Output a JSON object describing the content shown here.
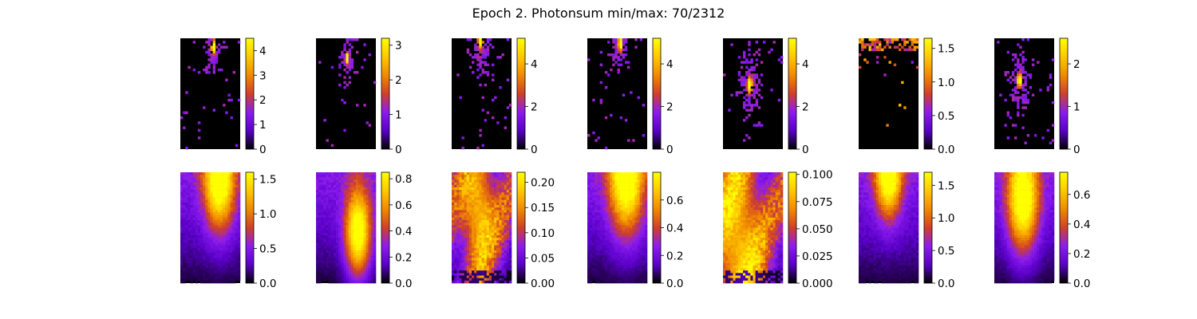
{
  "figure": {
    "title": "Epoch 2. Photonsum min/max: 70/2312",
    "colormap": "gnuplot",
    "cmap_stops": [
      "#000000",
      "#5a00c8",
      "#8c1cf0",
      "#d0402a",
      "#f08a00",
      "#ffc800",
      "#ffff00"
    ]
  },
  "chart_data": [
    {
      "type": "heatmap",
      "row": "top",
      "col": 1,
      "vmin": 0,
      "vmax": 4.5,
      "ticks": [
        "0",
        "1",
        "2",
        "3",
        "4"
      ],
      "tick_values": [
        0,
        1,
        2,
        3,
        4
      ],
      "pattern": "sparse",
      "peak": {
        "x": 0.55,
        "y": 0.08
      },
      "spread": 0.18
    },
    {
      "type": "heatmap",
      "row": "top",
      "col": 2,
      "vmin": 0,
      "vmax": 3.2,
      "ticks": [
        "0",
        "1",
        "2",
        "3"
      ],
      "tick_values": [
        0,
        1,
        2,
        3
      ],
      "pattern": "sparse",
      "peak": {
        "x": 0.52,
        "y": 0.18
      },
      "spread": 0.14
    },
    {
      "type": "heatmap",
      "row": "top",
      "col": 3,
      "vmin": 0,
      "vmax": 5.2,
      "ticks": [
        "0",
        "2",
        "4"
      ],
      "tick_values": [
        0,
        2,
        4
      ],
      "pattern": "sparse",
      "peak": {
        "x": 0.48,
        "y": 0.02
      },
      "spread": 0.2
    },
    {
      "type": "heatmap",
      "row": "top",
      "col": 4,
      "vmin": 0,
      "vmax": 5.2,
      "ticks": [
        "0",
        "2",
        "4"
      ],
      "tick_values": [
        0,
        2,
        4
      ],
      "pattern": "sparse",
      "peak": {
        "x": 0.55,
        "y": 0.05
      },
      "spread": 0.18
    },
    {
      "type": "heatmap",
      "row": "top",
      "col": 5,
      "vmin": 0,
      "vmax": 5.2,
      "ticks": [
        "0",
        "2",
        "4"
      ],
      "tick_values": [
        0,
        2,
        4
      ],
      "pattern": "sparse",
      "peak": {
        "x": 0.45,
        "y": 0.42
      },
      "spread": 0.2
    },
    {
      "type": "heatmap",
      "row": "top",
      "col": 6,
      "vmin": 0,
      "vmax": 1.65,
      "ticks": [
        "0.0",
        "0.5",
        "1.0",
        "1.5"
      ],
      "tick_values": [
        0,
        0.5,
        1,
        1.5
      ],
      "pattern": "topband",
      "peak": {
        "x": 0.6,
        "y": 0.02
      },
      "spread": 0.15
    },
    {
      "type": "heatmap",
      "row": "top",
      "col": 7,
      "vmin": 0,
      "vmax": 2.6,
      "ticks": [
        "0",
        "1",
        "2"
      ],
      "tick_values": [
        0,
        1,
        2
      ],
      "pattern": "sparse",
      "peak": {
        "x": 0.42,
        "y": 0.38
      },
      "spread": 0.18
    },
    {
      "type": "heatmap",
      "row": "bottom",
      "col": 1,
      "vmin": 0,
      "vmax": 1.6,
      "ticks": [
        "0.0",
        "0.5",
        "1.0",
        "1.5"
      ],
      "tick_values": [
        0,
        0.5,
        1,
        1.5
      ],
      "pattern": "smooth",
      "peak": {
        "x": 0.65,
        "y": 0.05
      },
      "spread": 0.35
    },
    {
      "type": "heatmap",
      "row": "bottom",
      "col": 2,
      "vmin": 0,
      "vmax": 0.85,
      "ticks": [
        "0.0",
        "0.2",
        "0.4",
        "0.6",
        "0.8"
      ],
      "tick_values": [
        0,
        0.2,
        0.4,
        0.6,
        0.8
      ],
      "pattern": "smooth",
      "peak": {
        "x": 0.7,
        "y": 0.55
      },
      "spread": 0.3
    },
    {
      "type": "heatmap",
      "row": "bottom",
      "col": 3,
      "vmin": 0,
      "vmax": 0.22,
      "ticks": [
        "0.00",
        "0.05",
        "0.10",
        "0.15",
        "0.20"
      ],
      "tick_values": [
        0,
        0.05,
        0.1,
        0.15,
        0.2
      ],
      "pattern": "noisy",
      "peak": {
        "x": 0.45,
        "y": 0.35
      },
      "spread": 0.4
    },
    {
      "type": "heatmap",
      "row": "bottom",
      "col": 4,
      "vmin": 0,
      "vmax": 0.8,
      "ticks": [
        "0.0",
        "0.2",
        "0.4",
        "0.6"
      ],
      "tick_values": [
        0,
        0.2,
        0.4,
        0.6
      ],
      "pattern": "smooth",
      "peak": {
        "x": 0.65,
        "y": 0.02
      },
      "spread": 0.4
    },
    {
      "type": "heatmap",
      "row": "bottom",
      "col": 5,
      "vmin": 0,
      "vmax": 0.102,
      "ticks": [
        "0.000",
        "0.025",
        "0.050",
        "0.075",
        "0.100"
      ],
      "tick_values": [
        0,
        0.025,
        0.05,
        0.075,
        0.1
      ],
      "pattern": "noisy",
      "peak": {
        "x": 0.25,
        "y": 0.6
      },
      "spread": 0.6
    },
    {
      "type": "heatmap",
      "row": "bottom",
      "col": 6,
      "vmin": 0,
      "vmax": 1.7,
      "ticks": [
        "0.0",
        "0.5",
        "1.0",
        "1.5"
      ],
      "tick_values": [
        0,
        0.5,
        1,
        1.5
      ],
      "pattern": "smooth",
      "peak": {
        "x": 0.5,
        "y": 0.0
      },
      "spread": 0.3
    },
    {
      "type": "heatmap",
      "row": "bottom",
      "col": 7,
      "vmin": 0,
      "vmax": 0.75,
      "ticks": [
        "0.0",
        "0.2",
        "0.4",
        "0.6"
      ],
      "tick_values": [
        0,
        0.2,
        0.4,
        0.6
      ],
      "pattern": "smooth",
      "peak": {
        "x": 0.48,
        "y": 0.25
      },
      "spread": 0.35
    }
  ]
}
